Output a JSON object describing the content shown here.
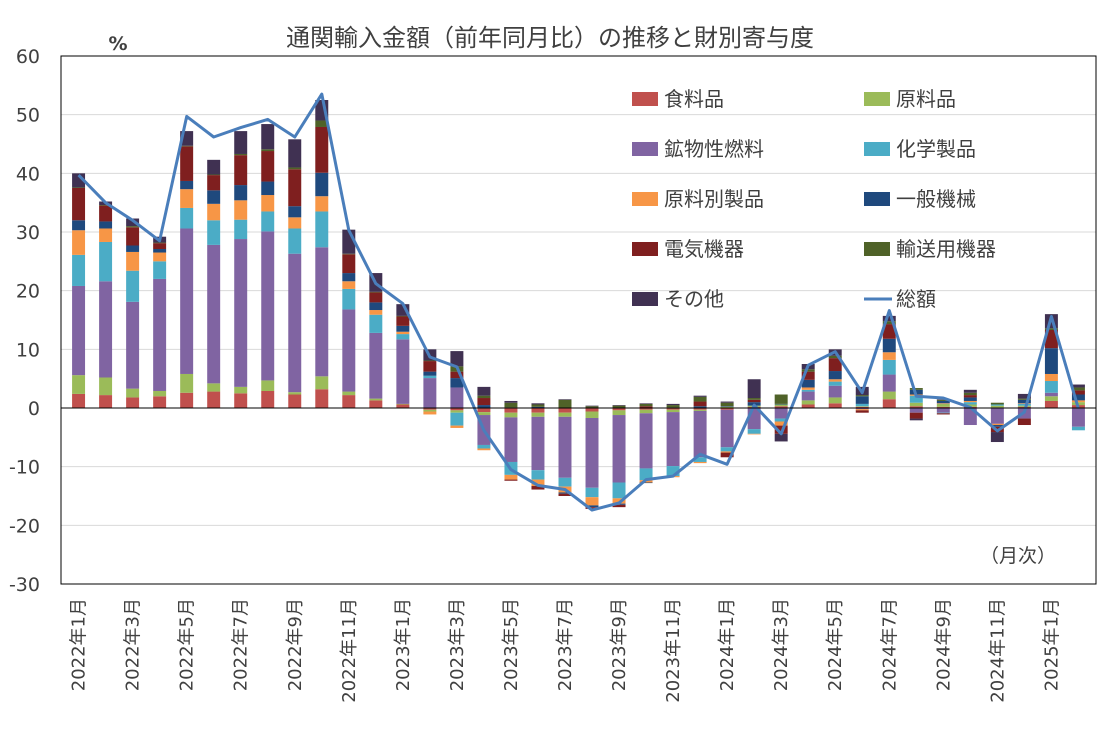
{
  "chart_data": {
    "type": "bar",
    "stacked": true,
    "title": "通関輸入金額（前年同月比）の推移と財別寄与度",
    "ylabel": "%",
    "annotation": "（月次）",
    "ylim": [
      -30,
      60
    ],
    "yticks": [
      60,
      50,
      40,
      30,
      20,
      10,
      0,
      -10,
      -20,
      -30
    ],
    "grid": true,
    "legend_position": "top-right",
    "categories": [
      "2022-01",
      "2022-02",
      "2022-03",
      "2022-04",
      "2022-05",
      "2022-06",
      "2022-07",
      "2022-08",
      "2022-09",
      "2022-10",
      "2022-11",
      "2022-12",
      "2023-01",
      "2023-02",
      "2023-03",
      "2023-04",
      "2023-05",
      "2023-06",
      "2023-07",
      "2023-08",
      "2023-09",
      "2023-10",
      "2023-11",
      "2023-12",
      "2024-01",
      "2024-02",
      "2024-03",
      "2024-04",
      "2024-05",
      "2024-06",
      "2024-07",
      "2024-08",
      "2024-09",
      "2024-10",
      "2024-11",
      "2024-12",
      "2025-01",
      "2025-02"
    ],
    "x_tick_labels": [
      "2022年1月",
      "2022年3月",
      "2022年5月",
      "2022年7月",
      "2022年9月",
      "2022年11月",
      "2023年1月",
      "2023年3月",
      "2023年5月",
      "2023年7月",
      "2023年9月",
      "2023年11月",
      "2024年1月",
      "2024年3月",
      "2024年5月",
      "2024年7月",
      "2024年9月",
      "2024年11月",
      "2025年1月"
    ],
    "series": [
      {
        "name": "食料品",
        "color": "#c0504d",
        "values": [
          2.4,
          2.2,
          1.8,
          2.0,
          2.6,
          2.8,
          2.5,
          2.9,
          2.3,
          3.2,
          2.2,
          1.3,
          0.6,
          -0.3,
          -0.4,
          -0.7,
          -0.8,
          -0.8,
          -0.8,
          -0.6,
          -0.4,
          -0.3,
          -0.3,
          -0.3,
          -0.3,
          0.2,
          0.3,
          0.6,
          0.8,
          0.2,
          1.5,
          0.3,
          0.2,
          0.2,
          0.1,
          0.2,
          1.2,
          0.5
        ]
      },
      {
        "name": "原料品",
        "color": "#9bbb59",
        "values": [
          3.2,
          3.0,
          1.5,
          0.9,
          3.2,
          1.4,
          1.1,
          1.8,
          0.4,
          2.2,
          0.6,
          0.3,
          0.1,
          -0.3,
          -0.4,
          -0.5,
          -0.8,
          -0.7,
          -0.7,
          -1.1,
          -0.8,
          -0.6,
          -0.4,
          -0.2,
          0.2,
          0.2,
          0.3,
          0.7,
          1.0,
          0.1,
          1.3,
          0.6,
          0.5,
          0.4,
          0.3,
          0.2,
          0.8,
          0.5
        ]
      },
      {
        "name": "鉱物性燃料",
        "color": "#8064a2",
        "values": [
          15.2,
          16.4,
          14.8,
          19.1,
          24.8,
          23.6,
          25.2,
          25.4,
          23.6,
          22.0,
          14.0,
          11.2,
          11.0,
          5.1,
          3.5,
          -5.1,
          -7.6,
          -9.1,
          -10.4,
          -11.9,
          -11.5,
          -9.4,
          -9.2,
          -7.9,
          -6.4,
          -3.6,
          -1.8,
          1.5,
          2.0,
          -0.2,
          2.9,
          -0.8,
          -0.8,
          -2.9,
          -2.7,
          -1.8,
          0.6,
          -3.2
        ]
      },
      {
        "name": "化学製品",
        "color": "#4bacc6",
        "values": [
          5.3,
          6.7,
          5.3,
          3.0,
          3.5,
          4.2,
          3.3,
          3.4,
          4.3,
          6.1,
          3.5,
          3.1,
          0.9,
          0.4,
          -2.2,
          -0.6,
          -2.2,
          -1.6,
          -1.5,
          -1.6,
          -2.7,
          -2.0,
          -1.7,
          -0.8,
          -0.7,
          -0.8,
          -0.5,
          0.3,
          0.7,
          0.4,
          2.5,
          1.2,
          -0.1,
          0.4,
          0.2,
          0.3,
          2.0,
          -0.6
        ]
      },
      {
        "name": "原料別製品",
        "color": "#f79646",
        "values": [
          4.2,
          2.3,
          3.2,
          1.5,
          3.2,
          2.8,
          3.3,
          2.8,
          1.9,
          2.6,
          1.3,
          0.8,
          0.4,
          -0.5,
          -0.4,
          -0.3,
          -0.8,
          -1.1,
          -1.0,
          -1.4,
          -0.9,
          -0.4,
          -0.2,
          -0.2,
          -0.2,
          -0.1,
          -0.7,
          0.4,
          0.4,
          -0.2,
          1.3,
          0.2,
          0.1,
          0.2,
          -0.2,
          0.1,
          1.2,
          0.3
        ]
      },
      {
        "name": "一般機械",
        "color": "#1f497d",
        "values": [
          1.7,
          1.2,
          1.1,
          0.6,
          1.4,
          2.3,
          2.6,
          2.3,
          1.9,
          4.0,
          1.4,
          1.3,
          1.0,
          0.7,
          1.6,
          0.5,
          0.1,
          0.2,
          -0.2,
          -0.3,
          -0.2,
          -0.1,
          0.0,
          0.3,
          0.1,
          0.6,
          0.1,
          1.3,
          1.4,
          1.3,
          2.3,
          0.8,
          0.4,
          0.6,
          -0.3,
          0.6,
          4.4,
          1.0
        ]
      },
      {
        "name": "電気機器",
        "color": "#7f1f1f",
        "values": [
          5.5,
          2.7,
          3.1,
          1.0,
          5.9,
          2.6,
          5.1,
          5.2,
          6.3,
          7.8,
          3.2,
          1.7,
          1.6,
          1.8,
          1.1,
          1.2,
          -0.2,
          -0.6,
          -0.4,
          -0.3,
          -0.4,
          0.3,
          0.1,
          0.8,
          -0.8,
          0.4,
          -1.4,
          1.4,
          2.2,
          -0.4,
          2.5,
          -1.0,
          -0.2,
          0.4,
          -0.9,
          -1.1,
          3.1,
          0.7
        ]
      },
      {
        "name": "輸送用機器",
        "color": "#4f6228",
        "values": [
          0.1,
          0.1,
          0.2,
          0.1,
          0.1,
          0.1,
          0.2,
          0.3,
          0.3,
          1.1,
          0.1,
          0.1,
          0.1,
          0.1,
          0.9,
          0.4,
          0.8,
          0.4,
          1.4,
          0.3,
          0.4,
          0.4,
          0.4,
          0.8,
          0.6,
          0.3,
          1.6,
          0.4,
          0.4,
          0.2,
          0.5,
          0.3,
          0.2,
          0.4,
          0.3,
          0.2,
          0.3,
          0.5
        ]
      },
      {
        "name": "その他",
        "color": "#403152",
        "values": [
          2.4,
          0.6,
          1.3,
          1.0,
          2.5,
          2.5,
          3.9,
          4.3,
          4.8,
          3.5,
          4.1,
          3.2,
          2.0,
          1.9,
          2.6,
          1.5,
          0.3,
          0.2,
          0.1,
          0.1,
          0.1,
          0.1,
          0.2,
          0.2,
          0.2,
          3.2,
          -1.3,
          0.9,
          1.1,
          1.4,
          0.9,
          -0.3,
          0.1,
          0.5,
          -1.7,
          0.8,
          2.4,
          0.5
        ]
      }
    ],
    "total": {
      "name": "総額",
      "color": "#4a7ebb",
      "values": [
        39.7,
        35.0,
        32.0,
        28.5,
        49.7,
        46.2,
        47.8,
        49.2,
        46.2,
        53.5,
        30.3,
        21.2,
        17.8,
        8.7,
        7.0,
        -3.8,
        -10.5,
        -13.2,
        -13.9,
        -17.4,
        -16.2,
        -12.2,
        -11.6,
        -7.9,
        -9.6,
        0.5,
        -4.4,
        7.3,
        9.6,
        2.6,
        16.6,
        2.0,
        1.7,
        0.1,
        -3.9,
        -0.7,
        15.6,
        -0.1
      ]
    }
  }
}
